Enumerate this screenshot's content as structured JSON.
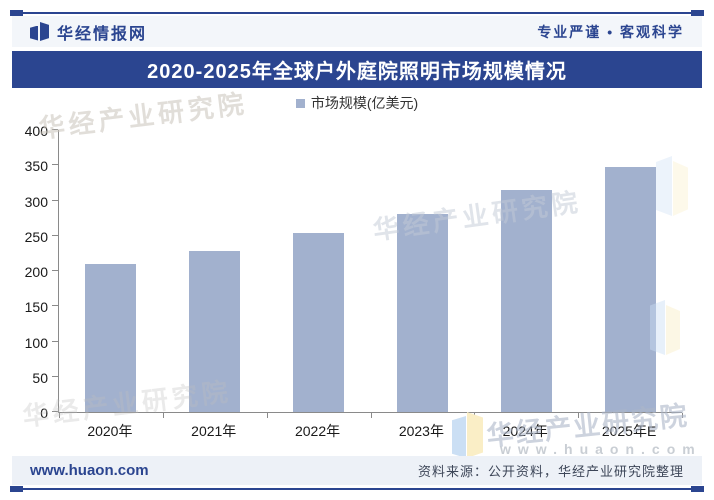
{
  "header": {
    "brand": "华经情报网",
    "slogan": "专业严谨 • 客观科学"
  },
  "title": "2020-2025年全球户外庭院照明市场规模情况",
  "chart_data": {
    "type": "bar",
    "title": "2020-2025年全球户外庭院照明市场规模情况",
    "legend": "市场规模(亿美元)",
    "categories": [
      "2020年",
      "2021年",
      "2022年",
      "2023年",
      "2024年",
      "2025年E"
    ],
    "values": [
      210,
      229,
      254,
      281,
      315,
      348
    ],
    "ylim": [
      0,
      400
    ],
    "ytick_step": 50,
    "xlabel": "",
    "ylabel": "",
    "grid": false,
    "legend_position": "top",
    "bar_color": "#a2b1ce"
  },
  "watermarks": {
    "diag_text": "华经产业研究院",
    "url_text": "www.huaon.com"
  },
  "footer": {
    "site": "www.huaon.com",
    "source": "资料来源：公开资料，华经产业研究院整理"
  },
  "colors": {
    "navy": "#2b4590",
    "bar": "#a2b1ce",
    "header_bg": "#f3f6fa",
    "footer_bg": "#edf1f7"
  }
}
